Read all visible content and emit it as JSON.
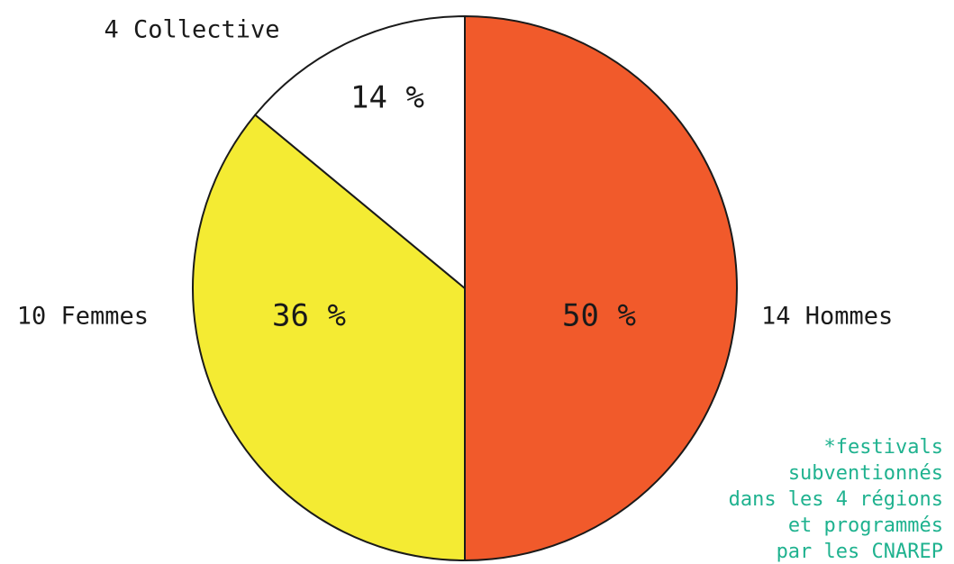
{
  "chart_data": {
    "type": "pie",
    "categories": [
      "14 Hommes",
      "10 Femmes",
      "4 Collective"
    ],
    "values": [
      50,
      36,
      14
    ],
    "value_labels": [
      "50 %",
      "36 %",
      "14 %"
    ],
    "colors": [
      "#f15a2b",
      "#f4eb33",
      "#ffffff"
    ],
    "footnote": [
      "*festivals",
      "subventionnés",
      "dans les 4 régions",
      "et programmés",
      "par les CNAREP"
    ]
  }
}
